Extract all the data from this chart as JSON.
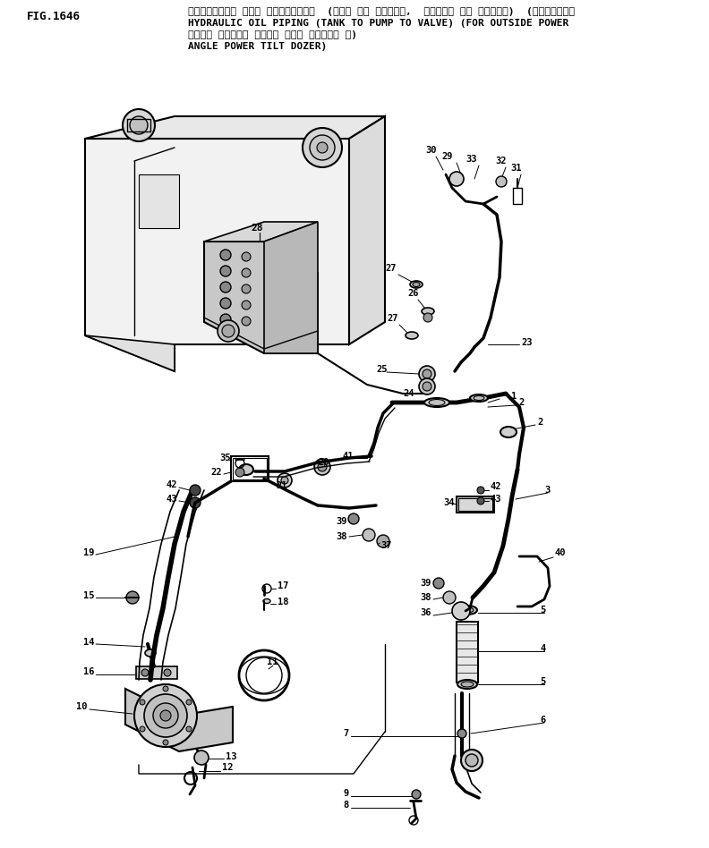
{
  "title_line1": "ハイト゛ロリック オイル ハ゛イヒ゛ンク゛  (タンク から ホ゛ンプ゛,  ホ゛ンプ゛ から ハ゛ルフ゛) (アウトサイト゛",
  "title_line2": "HYDRAULIC OIL PIPING (TANK TO PUMP TO VALVE) (FOR OUTSIDE POWER",
  "title_line3": "ハ゛ワー アンク゛ル ハ゛ワー チルト ト゛ーサ゛ ヨ)",
  "title_line4": "ANGLE POWER TILT DOZER)",
  "fig_label": "FIG.1646",
  "bg_color": "#ffffff",
  "line_color": "#000000"
}
